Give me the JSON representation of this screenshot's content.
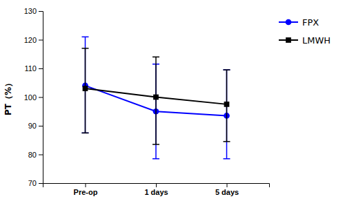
{
  "chart_data": {
    "type": "line",
    "categories": [
      "Pre-op",
      "1 days",
      "5 days"
    ],
    "ylabel": "PT（%）",
    "ylim": [
      70,
      130
    ],
    "yticks": [
      70,
      80,
      90,
      100,
      110,
      120,
      130
    ],
    "grid": false,
    "legend": "upper right",
    "series": [
      {
        "name": "FPX",
        "color": "#0000FF",
        "marker": "circle",
        "values": [
          104.0,
          95.0,
          93.5
        ],
        "error_lower": [
          16.5,
          16.5,
          15.0
        ],
        "error_upper": [
          17.0,
          16.5,
          16.0
        ]
      },
      {
        "name": "LMWH",
        "color": "#000000",
        "marker": "square",
        "values": [
          103.0,
          100.0,
          97.5
        ],
        "error_lower": [
          15.5,
          16.5,
          13.0
        ],
        "error_upper": [
          14.0,
          14.0,
          12.0
        ]
      }
    ]
  }
}
